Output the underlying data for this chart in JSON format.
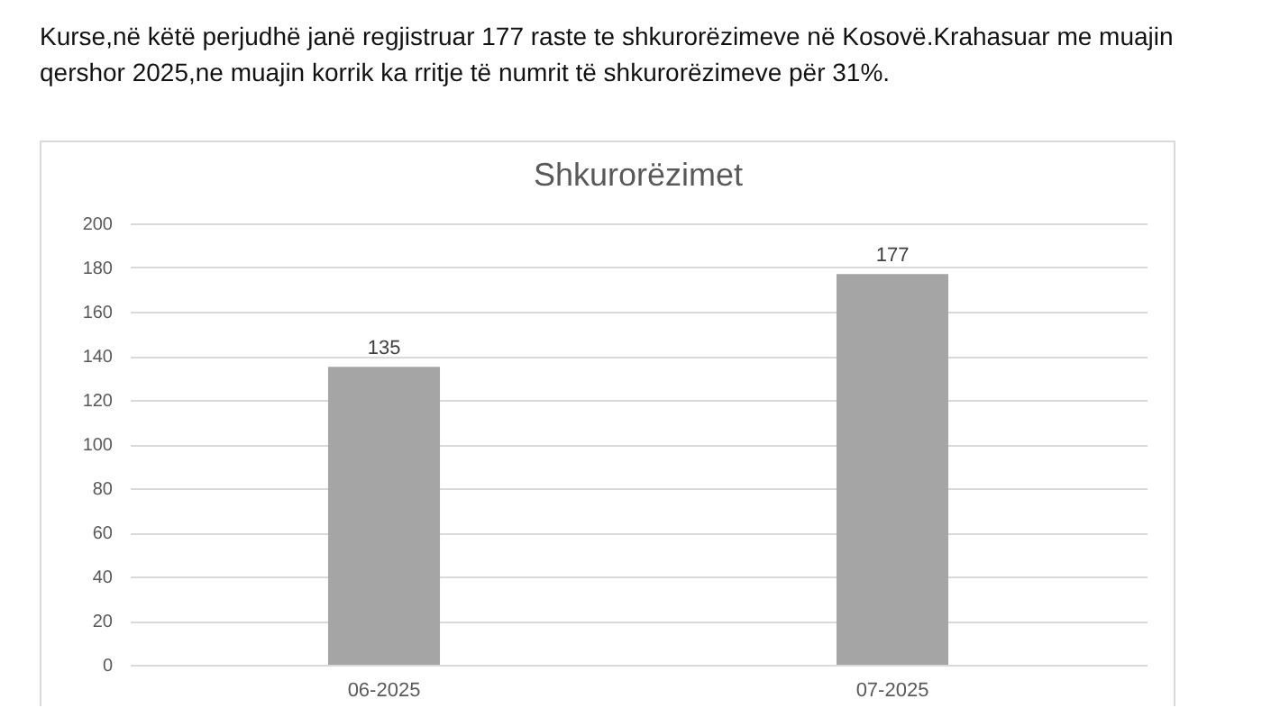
{
  "chart_data": {
    "type": "bar",
    "title": "Shkurorëzimet",
    "annotations": [
      "Kurse,në këtë perjudhë janë regjistruar 177 raste te shkurorëzimeve në Kosovë.Krahasuar me muajin qershor 2025,ne muajin korrik ka rritje të numrit të shkurorëzimeve për 31%."
    ],
    "categories": [
      "06-2025",
      "07-2025"
    ],
    "values": [
      135,
      177
    ],
    "color": "#a5a5a5",
    "ylim": [
      0,
      200
    ],
    "yticks": [
      0,
      20,
      40,
      60,
      80,
      100,
      120,
      140,
      160,
      180,
      200
    ],
    "grid": "y",
    "data_labels": true
  }
}
